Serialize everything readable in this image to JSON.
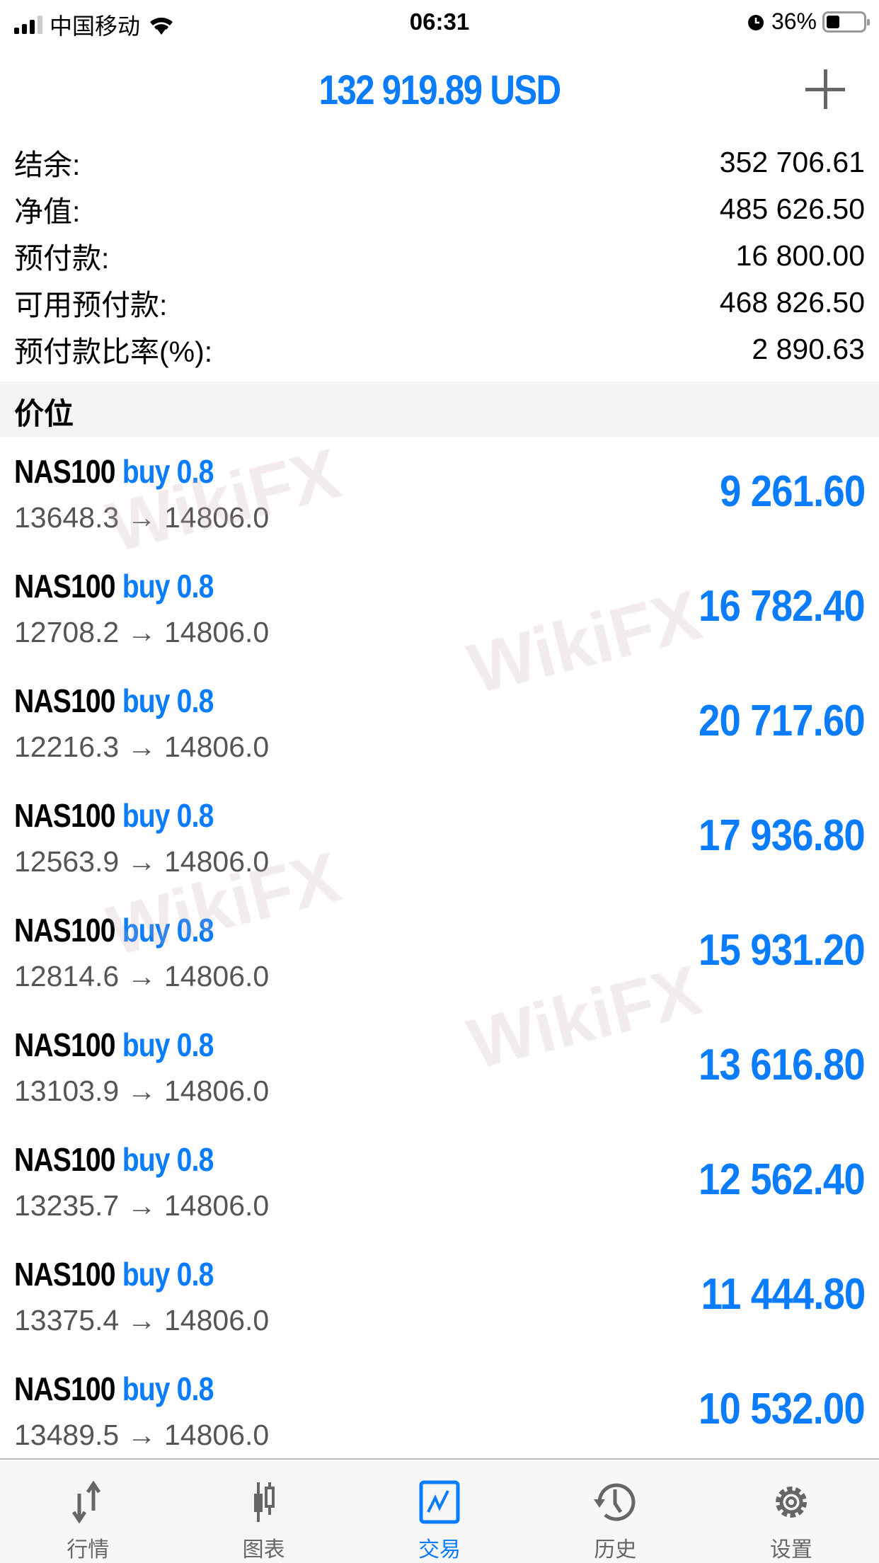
{
  "status_bar": {
    "carrier": "中国移动",
    "time": "06:31",
    "battery": "36%",
    "battery_level": 0.36
  },
  "header": {
    "title": "132 919.89 USD",
    "add_icon": "plus-icon"
  },
  "summary": [
    {
      "label": "结余:",
      "value": "352 706.61"
    },
    {
      "label": "净值:",
      "value": "485 626.50"
    },
    {
      "label": "预付款:",
      "value": "16 800.00"
    },
    {
      "label": "可用预付款:",
      "value": "468 826.50"
    },
    {
      "label": "预付款比率(%):",
      "value": "2 890.63"
    }
  ],
  "section_title": "价位",
  "positions": [
    {
      "symbol": "NAS100",
      "side": "buy 0.8",
      "prices": "13648.3 → 14806.0",
      "profit": "9 261.60"
    },
    {
      "symbol": "NAS100",
      "side": "buy 0.8",
      "prices": "12708.2 → 14806.0",
      "profit": "16 782.40"
    },
    {
      "symbol": "NAS100",
      "side": "buy 0.8",
      "prices": "12216.3 → 14806.0",
      "profit": "20 717.60"
    },
    {
      "symbol": "NAS100",
      "side": "buy 0.8",
      "prices": "12563.9 → 14806.0",
      "profit": "17 936.80"
    },
    {
      "symbol": "NAS100",
      "side": "buy 0.8",
      "prices": "12814.6 → 14806.0",
      "profit": "15 931.20"
    },
    {
      "symbol": "NAS100",
      "side": "buy 0.8",
      "prices": "13103.9 → 14806.0",
      "profit": "13 616.80"
    },
    {
      "symbol": "NAS100",
      "side": "buy 0.8",
      "prices": "13235.7 → 14806.0",
      "profit": "12 562.40"
    },
    {
      "symbol": "NAS100",
      "side": "buy 0.8",
      "prices": "13375.4 → 14806.0",
      "profit": "11 444.80"
    },
    {
      "symbol": "NAS100",
      "side": "buy 0.8",
      "prices": "13489.5 → 14806.0",
      "profit": "10 532.00"
    }
  ],
  "watermark": "WikiFX",
  "tabs": [
    {
      "label": "行情",
      "icon": "arrows-updown-icon"
    },
    {
      "label": "图表",
      "icon": "candlestick-icon"
    },
    {
      "label": "交易",
      "icon": "trade-chart-icon",
      "active": true
    },
    {
      "label": "历史",
      "icon": "history-icon"
    },
    {
      "label": "设置",
      "icon": "gear-icon"
    }
  ],
  "colors": {
    "accent": "#0a7cff",
    "text_secondary": "#555555"
  }
}
